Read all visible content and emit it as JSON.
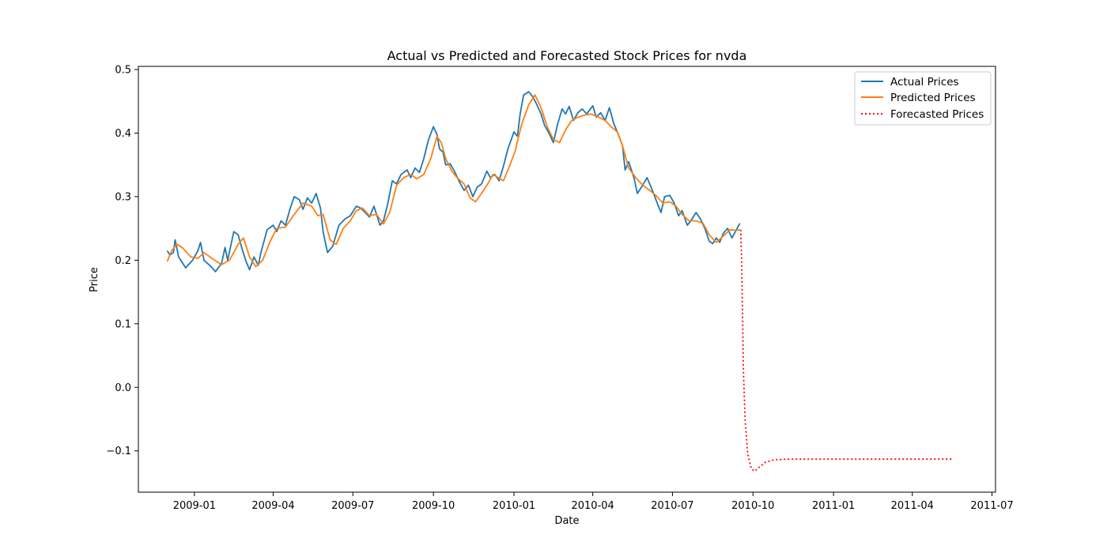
{
  "chart_data": {
    "type": "line",
    "title": "Actual vs Predicted and Forecasted Stock Prices for nvda",
    "xlabel": "Date",
    "ylabel": "Price",
    "x_range": [
      "2008-10-29",
      "2011-07-05"
    ],
    "ylim": [
      -0.165,
      0.505
    ],
    "x_ticks": [
      "2009-01",
      "2009-04",
      "2009-07",
      "2009-10",
      "2010-01",
      "2010-04",
      "2010-07",
      "2010-10",
      "2011-01",
      "2011-04",
      "2011-07"
    ],
    "y_ticks": [
      "0.5",
      "0.4",
      "0.3",
      "0.2",
      "0.1",
      "0.0",
      "-0.1"
    ],
    "grid": false,
    "legend_position": "top-right",
    "series": [
      {
        "name": "Actual Prices",
        "color": "#1f77b4",
        "style": "solid",
        "points": [
          [
            "2008-12-01",
            0.215
          ],
          [
            "2008-12-04",
            0.208
          ],
          [
            "2008-12-08",
            0.212
          ],
          [
            "2008-12-10",
            0.232
          ],
          [
            "2008-12-14",
            0.205
          ],
          [
            "2008-12-22",
            0.188
          ],
          [
            "2008-12-30",
            0.2
          ],
          [
            "2009-01-05",
            0.215
          ],
          [
            "2009-01-08",
            0.228
          ],
          [
            "2009-01-12",
            0.2
          ],
          [
            "2009-01-20",
            0.19
          ],
          [
            "2009-01-25",
            0.182
          ],
          [
            "2009-02-01",
            0.195
          ],
          [
            "2009-02-05",
            0.22
          ],
          [
            "2009-02-08",
            0.2
          ],
          [
            "2009-02-15",
            0.245
          ],
          [
            "2009-02-20",
            0.24
          ],
          [
            "2009-02-25",
            0.215
          ],
          [
            "2009-03-01",
            0.198
          ],
          [
            "2009-03-05",
            0.185
          ],
          [
            "2009-03-10",
            0.205
          ],
          [
            "2009-03-15",
            0.192
          ],
          [
            "2009-03-18",
            0.212
          ],
          [
            "2009-03-25",
            0.248
          ],
          [
            "2009-04-01",
            0.255
          ],
          [
            "2009-04-05",
            0.245
          ],
          [
            "2009-04-10",
            0.262
          ],
          [
            "2009-04-15",
            0.255
          ],
          [
            "2009-04-20",
            0.28
          ],
          [
            "2009-04-25",
            0.3
          ],
          [
            "2009-05-01",
            0.295
          ],
          [
            "2009-05-05",
            0.28
          ],
          [
            "2009-05-10",
            0.298
          ],
          [
            "2009-05-15",
            0.29
          ],
          [
            "2009-05-20",
            0.305
          ],
          [
            "2009-05-25",
            0.282
          ],
          [
            "2009-05-28",
            0.245
          ],
          [
            "2009-06-02",
            0.212
          ],
          [
            "2009-06-08",
            0.222
          ],
          [
            "2009-06-15",
            0.255
          ],
          [
            "2009-06-22",
            0.265
          ],
          [
            "2009-06-28",
            0.27
          ],
          [
            "2009-07-05",
            0.285
          ],
          [
            "2009-07-10",
            0.282
          ],
          [
            "2009-07-15",
            0.275
          ],
          [
            "2009-07-20",
            0.268
          ],
          [
            "2009-07-25",
            0.285
          ],
          [
            "2009-08-01",
            0.255
          ],
          [
            "2009-08-05",
            0.262
          ],
          [
            "2009-08-10",
            0.29
          ],
          [
            "2009-08-15",
            0.325
          ],
          [
            "2009-08-20",
            0.32
          ],
          [
            "2009-08-25",
            0.335
          ],
          [
            "2009-09-01",
            0.342
          ],
          [
            "2009-09-05",
            0.33
          ],
          [
            "2009-09-10",
            0.345
          ],
          [
            "2009-09-15",
            0.338
          ],
          [
            "2009-09-20",
            0.36
          ],
          [
            "2009-09-25",
            0.388
          ],
          [
            "2009-10-01",
            0.41
          ],
          [
            "2009-10-05",
            0.398
          ],
          [
            "2009-10-08",
            0.375
          ],
          [
            "2009-10-12",
            0.37
          ],
          [
            "2009-10-15",
            0.35
          ],
          [
            "2009-10-20",
            0.352
          ],
          [
            "2009-10-25",
            0.34
          ],
          [
            "2009-10-30",
            0.325
          ],
          [
            "2009-11-05",
            0.31
          ],
          [
            "2009-11-10",
            0.318
          ],
          [
            "2009-11-15",
            0.3
          ],
          [
            "2009-11-20",
            0.315
          ],
          [
            "2009-11-25",
            0.32
          ],
          [
            "2009-12-01",
            0.34
          ],
          [
            "2009-12-05",
            0.33
          ],
          [
            "2009-12-10",
            0.335
          ],
          [
            "2009-12-15",
            0.325
          ],
          [
            "2009-12-20",
            0.348
          ],
          [
            "2009-12-25",
            0.375
          ],
          [
            "2010-01-01",
            0.402
          ],
          [
            "2010-01-05",
            0.395
          ],
          [
            "2010-01-08",
            0.43
          ],
          [
            "2010-01-12",
            0.46
          ],
          [
            "2010-01-18",
            0.465
          ],
          [
            "2010-01-22",
            0.458
          ],
          [
            "2010-01-26",
            0.448
          ],
          [
            "2010-02-01",
            0.43
          ],
          [
            "2010-02-05",
            0.412
          ],
          [
            "2010-02-10",
            0.4
          ],
          [
            "2010-02-15",
            0.385
          ],
          [
            "2010-02-20",
            0.415
          ],
          [
            "2010-02-25",
            0.438
          ],
          [
            "2010-03-01",
            0.43
          ],
          [
            "2010-03-05",
            0.442
          ],
          [
            "2010-03-10",
            0.42
          ],
          [
            "2010-03-15",
            0.432
          ],
          [
            "2010-03-20",
            0.438
          ],
          [
            "2010-03-25",
            0.43
          ],
          [
            "2010-04-01",
            0.443
          ],
          [
            "2010-04-05",
            0.425
          ],
          [
            "2010-04-10",
            0.432
          ],
          [
            "2010-04-15",
            0.42
          ],
          [
            "2010-04-20",
            0.44
          ],
          [
            "2010-04-25",
            0.415
          ],
          [
            "2010-05-01",
            0.395
          ],
          [
            "2010-05-05",
            0.38
          ],
          [
            "2010-05-08",
            0.342
          ],
          [
            "2010-05-12",
            0.355
          ],
          [
            "2010-05-18",
            0.33
          ],
          [
            "2010-05-22",
            0.305
          ],
          [
            "2010-05-28",
            0.318
          ],
          [
            "2010-06-02",
            0.33
          ],
          [
            "2010-06-08",
            0.31
          ],
          [
            "2010-06-15",
            0.285
          ],
          [
            "2010-06-18",
            0.275
          ],
          [
            "2010-06-22",
            0.3
          ],
          [
            "2010-06-28",
            0.302
          ],
          [
            "2010-07-03",
            0.29
          ],
          [
            "2010-07-08",
            0.27
          ],
          [
            "2010-07-12",
            0.278
          ],
          [
            "2010-07-18",
            0.255
          ],
          [
            "2010-07-22",
            0.262
          ],
          [
            "2010-07-28",
            0.275
          ],
          [
            "2010-08-02",
            0.265
          ],
          [
            "2010-08-07",
            0.25
          ],
          [
            "2010-08-12",
            0.23
          ],
          [
            "2010-08-16",
            0.226
          ],
          [
            "2010-08-20",
            0.235
          ],
          [
            "2010-08-24",
            0.228
          ],
          [
            "2010-08-28",
            0.242
          ],
          [
            "2010-09-02",
            0.25
          ],
          [
            "2010-09-07",
            0.235
          ],
          [
            "2010-09-11",
            0.245
          ],
          [
            "2010-09-16",
            0.258
          ]
        ]
      },
      {
        "name": "Predicted Prices",
        "color": "#ff7f0e",
        "style": "solid",
        "points": [
          [
            "2008-12-01",
            0.198
          ],
          [
            "2008-12-06",
            0.215
          ],
          [
            "2008-12-12",
            0.225
          ],
          [
            "2008-12-18",
            0.22
          ],
          [
            "2008-12-28",
            0.205
          ],
          [
            "2009-01-05",
            0.203
          ],
          [
            "2009-01-12",
            0.212
          ],
          [
            "2009-01-22",
            0.202
          ],
          [
            "2009-02-01",
            0.193
          ],
          [
            "2009-02-10",
            0.2
          ],
          [
            "2009-02-20",
            0.225
          ],
          [
            "2009-02-26",
            0.235
          ],
          [
            "2009-03-05",
            0.205
          ],
          [
            "2009-03-12",
            0.19
          ],
          [
            "2009-03-20",
            0.2
          ],
          [
            "2009-03-28",
            0.228
          ],
          [
            "2009-04-05",
            0.25
          ],
          [
            "2009-04-15",
            0.252
          ],
          [
            "2009-04-25",
            0.272
          ],
          [
            "2009-05-05",
            0.29
          ],
          [
            "2009-05-15",
            0.285
          ],
          [
            "2009-05-22",
            0.27
          ],
          [
            "2009-05-28",
            0.272
          ],
          [
            "2009-06-05",
            0.232
          ],
          [
            "2009-06-12",
            0.225
          ],
          [
            "2009-06-20",
            0.25
          ],
          [
            "2009-06-28",
            0.262
          ],
          [
            "2009-07-05",
            0.278
          ],
          [
            "2009-07-12",
            0.282
          ],
          [
            "2009-07-20",
            0.27
          ],
          [
            "2009-07-28",
            0.272
          ],
          [
            "2009-08-05",
            0.257
          ],
          [
            "2009-08-12",
            0.275
          ],
          [
            "2009-08-20",
            0.318
          ],
          [
            "2009-08-28",
            0.33
          ],
          [
            "2009-09-05",
            0.335
          ],
          [
            "2009-09-12",
            0.328
          ],
          [
            "2009-09-20",
            0.335
          ],
          [
            "2009-09-28",
            0.36
          ],
          [
            "2009-10-05",
            0.395
          ],
          [
            "2009-10-10",
            0.385
          ],
          [
            "2009-10-15",
            0.36
          ],
          [
            "2009-10-22",
            0.34
          ],
          [
            "2009-10-28",
            0.33
          ],
          [
            "2009-11-05",
            0.32
          ],
          [
            "2009-11-12",
            0.298
          ],
          [
            "2009-11-18",
            0.292
          ],
          [
            "2009-11-25",
            0.305
          ],
          [
            "2009-12-02",
            0.32
          ],
          [
            "2009-12-08",
            0.335
          ],
          [
            "2009-12-14",
            0.33
          ],
          [
            "2009-12-20",
            0.325
          ],
          [
            "2009-12-26",
            0.345
          ],
          [
            "2010-01-02",
            0.37
          ],
          [
            "2010-01-10",
            0.415
          ],
          [
            "2010-01-18",
            0.445
          ],
          [
            "2010-01-25",
            0.46
          ],
          [
            "2010-02-01",
            0.44
          ],
          [
            "2010-02-08",
            0.41
          ],
          [
            "2010-02-15",
            0.39
          ],
          [
            "2010-02-22",
            0.385
          ],
          [
            "2010-03-01",
            0.405
          ],
          [
            "2010-03-08",
            0.42
          ],
          [
            "2010-03-15",
            0.425
          ],
          [
            "2010-03-22",
            0.428
          ],
          [
            "2010-03-30",
            0.43
          ],
          [
            "2010-04-08",
            0.425
          ],
          [
            "2010-04-15",
            0.42
          ],
          [
            "2010-04-22",
            0.41
          ],
          [
            "2010-04-29",
            0.402
          ],
          [
            "2010-05-05",
            0.38
          ],
          [
            "2010-05-12",
            0.345
          ],
          [
            "2010-05-20",
            0.33
          ],
          [
            "2010-05-28",
            0.318
          ],
          [
            "2010-06-05",
            0.31
          ],
          [
            "2010-06-12",
            0.302
          ],
          [
            "2010-06-20",
            0.29
          ],
          [
            "2010-06-28",
            0.292
          ],
          [
            "2010-07-05",
            0.285
          ],
          [
            "2010-07-12",
            0.272
          ],
          [
            "2010-07-20",
            0.262
          ],
          [
            "2010-07-28",
            0.262
          ],
          [
            "2010-08-05",
            0.258
          ],
          [
            "2010-08-12",
            0.24
          ],
          [
            "2010-08-20",
            0.228
          ],
          [
            "2010-08-28",
            0.238
          ],
          [
            "2010-09-05",
            0.248
          ],
          [
            "2010-09-12",
            0.247
          ],
          [
            "2010-09-16",
            0.248
          ]
        ]
      },
      {
        "name": "Forecasted Prices",
        "color": "#ff0000",
        "style": "dotted",
        "points": [
          [
            "2010-09-17",
            0.248
          ],
          [
            "2010-09-18",
            0.2
          ],
          [
            "2010-09-19",
            0.12
          ],
          [
            "2010-09-20",
            0.03
          ],
          [
            "2010-09-22",
            -0.05
          ],
          [
            "2010-09-25",
            -0.105
          ],
          [
            "2010-09-29",
            -0.128
          ],
          [
            "2010-10-03",
            -0.132
          ],
          [
            "2010-10-08",
            -0.126
          ],
          [
            "2010-10-15",
            -0.118
          ],
          [
            "2010-10-25",
            -0.114
          ],
          [
            "2010-11-10",
            -0.113
          ],
          [
            "2011-05-17",
            -0.113
          ]
        ]
      }
    ]
  }
}
